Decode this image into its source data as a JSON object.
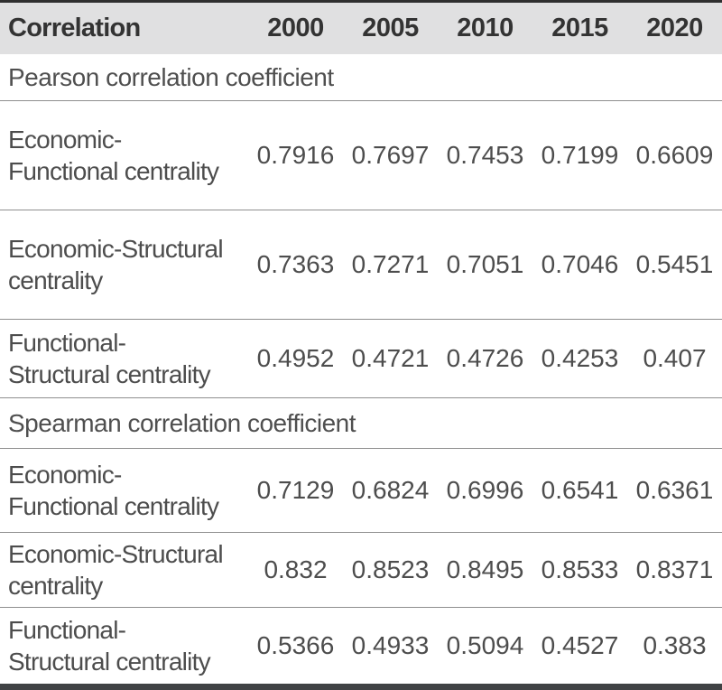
{
  "table": {
    "header": {
      "label": "Correlation",
      "years": [
        "2000",
        "2005",
        "2010",
        "2015",
        "2020"
      ]
    },
    "sections": [
      {
        "title": "Pearson correlation coefficient",
        "rows": [
          {
            "label": "Economic-\nFunctional centrality",
            "values": [
              "0.7916",
              "0.7697",
              "0.7453",
              "0.7199",
              "0.6609"
            ]
          },
          {
            "label": "Economic-Structural\ncentrality",
            "values": [
              "0.7363",
              "0.7271",
              "0.7051",
              "0.7046",
              "0.5451"
            ]
          },
          {
            "label": "Functional-\nStructural centrality",
            "values": [
              "0.4952",
              "0.4721",
              "0.4726",
              "0.4253",
              "0.407"
            ]
          }
        ]
      },
      {
        "title": "Spearman correlation coefficient",
        "rows": [
          {
            "label": "Economic-\nFunctional centrality",
            "values": [
              "0.7129",
              "0.6824",
              "0.6996",
              "0.6541",
              "0.6361"
            ]
          },
          {
            "label": "Economic-Structural\ncentrality",
            "values": [
              "0.832",
              "0.8523",
              "0.8495",
              "0.8533",
              "0.8371"
            ]
          },
          {
            "label": "Functional-\nStructural centrality",
            "values": [
              "0.5366",
              "0.4933",
              "0.5094",
              "0.4527",
              "0.383"
            ]
          }
        ]
      }
    ],
    "colors": {
      "header_background": "#e0e0e1",
      "header_text": "#333333",
      "body_text": "#4d4d4d",
      "row_rule": "#8f8f8f",
      "top_border": "#2f2f2f",
      "bottom_border": "#404244"
    }
  }
}
